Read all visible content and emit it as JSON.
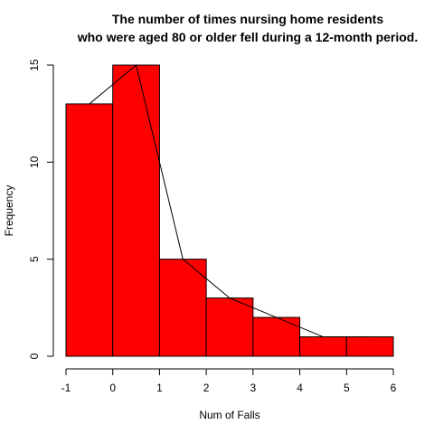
{
  "chart_data": {
    "type": "bar",
    "title_lines": [
      "The number of times nursing home residents",
      "who were aged 80 or older fell during a 12-month period."
    ],
    "xlabel": "Num of Falls",
    "ylabel": "Frequency",
    "bins": [
      {
        "from": -1,
        "to": 0,
        "value": 13
      },
      {
        "from": 0,
        "to": 1,
        "value": 15
      },
      {
        "from": 1,
        "to": 2,
        "value": 5
      },
      {
        "from": 2,
        "to": 3,
        "value": 3
      },
      {
        "from": 3,
        "to": 4,
        "value": 2
      },
      {
        "from": 4,
        "to": 5,
        "value": 1
      },
      {
        "from": 5,
        "to": 6,
        "value": 1
      }
    ],
    "polygon": {
      "x": [
        -0.5,
        0.5,
        1.5,
        2.5,
        3.5,
        4.5,
        5.5
      ],
      "y": [
        13,
        15,
        5,
        3,
        2,
        1,
        1
      ]
    },
    "xticks": [
      "-1",
      "0",
      "1",
      "2",
      "3",
      "4",
      "5",
      "6"
    ],
    "yticks": [
      "0",
      "5",
      "10",
      "15"
    ],
    "xlim": [
      -1,
      6
    ],
    "ylim": [
      0,
      15
    ],
    "bar_color": "#ff0000",
    "edge_color": "#000000",
    "grid": false,
    "legend": "none"
  }
}
